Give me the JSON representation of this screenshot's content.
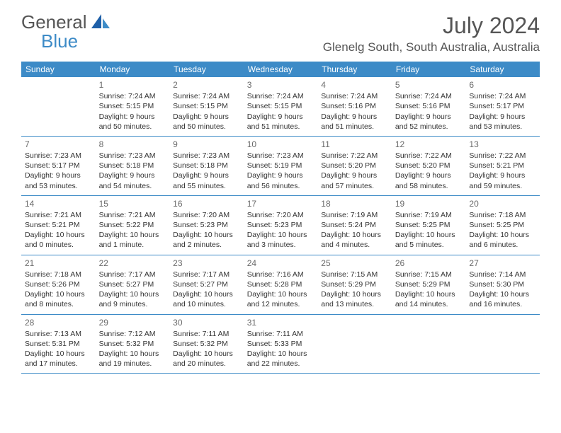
{
  "brand": {
    "word1": "General",
    "word2": "Blue"
  },
  "title": "July 2024",
  "location": "Glenelg South, South Australia, Australia",
  "colors": {
    "accent": "#3d8bc7",
    "text": "#333333",
    "muted": "#6a6a6a",
    "bg": "#ffffff"
  },
  "weekdays": [
    "Sunday",
    "Monday",
    "Tuesday",
    "Wednesday",
    "Thursday",
    "Friday",
    "Saturday"
  ],
  "weeks": [
    [
      {
        "n": "",
        "sunrise": "",
        "sunset": "",
        "day1": "",
        "day2": ""
      },
      {
        "n": "1",
        "sunrise": "Sunrise: 7:24 AM",
        "sunset": "Sunset: 5:15 PM",
        "day1": "Daylight: 9 hours",
        "day2": "and 50 minutes."
      },
      {
        "n": "2",
        "sunrise": "Sunrise: 7:24 AM",
        "sunset": "Sunset: 5:15 PM",
        "day1": "Daylight: 9 hours",
        "day2": "and 50 minutes."
      },
      {
        "n": "3",
        "sunrise": "Sunrise: 7:24 AM",
        "sunset": "Sunset: 5:15 PM",
        "day1": "Daylight: 9 hours",
        "day2": "and 51 minutes."
      },
      {
        "n": "4",
        "sunrise": "Sunrise: 7:24 AM",
        "sunset": "Sunset: 5:16 PM",
        "day1": "Daylight: 9 hours",
        "day2": "and 51 minutes."
      },
      {
        "n": "5",
        "sunrise": "Sunrise: 7:24 AM",
        "sunset": "Sunset: 5:16 PM",
        "day1": "Daylight: 9 hours",
        "day2": "and 52 minutes."
      },
      {
        "n": "6",
        "sunrise": "Sunrise: 7:24 AM",
        "sunset": "Sunset: 5:17 PM",
        "day1": "Daylight: 9 hours",
        "day2": "and 53 minutes."
      }
    ],
    [
      {
        "n": "7",
        "sunrise": "Sunrise: 7:23 AM",
        "sunset": "Sunset: 5:17 PM",
        "day1": "Daylight: 9 hours",
        "day2": "and 53 minutes."
      },
      {
        "n": "8",
        "sunrise": "Sunrise: 7:23 AM",
        "sunset": "Sunset: 5:18 PM",
        "day1": "Daylight: 9 hours",
        "day2": "and 54 minutes."
      },
      {
        "n": "9",
        "sunrise": "Sunrise: 7:23 AM",
        "sunset": "Sunset: 5:18 PM",
        "day1": "Daylight: 9 hours",
        "day2": "and 55 minutes."
      },
      {
        "n": "10",
        "sunrise": "Sunrise: 7:23 AM",
        "sunset": "Sunset: 5:19 PM",
        "day1": "Daylight: 9 hours",
        "day2": "and 56 minutes."
      },
      {
        "n": "11",
        "sunrise": "Sunrise: 7:22 AM",
        "sunset": "Sunset: 5:20 PM",
        "day1": "Daylight: 9 hours",
        "day2": "and 57 minutes."
      },
      {
        "n": "12",
        "sunrise": "Sunrise: 7:22 AM",
        "sunset": "Sunset: 5:20 PM",
        "day1": "Daylight: 9 hours",
        "day2": "and 58 minutes."
      },
      {
        "n": "13",
        "sunrise": "Sunrise: 7:22 AM",
        "sunset": "Sunset: 5:21 PM",
        "day1": "Daylight: 9 hours",
        "day2": "and 59 minutes."
      }
    ],
    [
      {
        "n": "14",
        "sunrise": "Sunrise: 7:21 AM",
        "sunset": "Sunset: 5:21 PM",
        "day1": "Daylight: 10 hours",
        "day2": "and 0 minutes."
      },
      {
        "n": "15",
        "sunrise": "Sunrise: 7:21 AM",
        "sunset": "Sunset: 5:22 PM",
        "day1": "Daylight: 10 hours",
        "day2": "and 1 minute."
      },
      {
        "n": "16",
        "sunrise": "Sunrise: 7:20 AM",
        "sunset": "Sunset: 5:23 PM",
        "day1": "Daylight: 10 hours",
        "day2": "and 2 minutes."
      },
      {
        "n": "17",
        "sunrise": "Sunrise: 7:20 AM",
        "sunset": "Sunset: 5:23 PM",
        "day1": "Daylight: 10 hours",
        "day2": "and 3 minutes."
      },
      {
        "n": "18",
        "sunrise": "Sunrise: 7:19 AM",
        "sunset": "Sunset: 5:24 PM",
        "day1": "Daylight: 10 hours",
        "day2": "and 4 minutes."
      },
      {
        "n": "19",
        "sunrise": "Sunrise: 7:19 AM",
        "sunset": "Sunset: 5:25 PM",
        "day1": "Daylight: 10 hours",
        "day2": "and 5 minutes."
      },
      {
        "n": "20",
        "sunrise": "Sunrise: 7:18 AM",
        "sunset": "Sunset: 5:25 PM",
        "day1": "Daylight: 10 hours",
        "day2": "and 6 minutes."
      }
    ],
    [
      {
        "n": "21",
        "sunrise": "Sunrise: 7:18 AM",
        "sunset": "Sunset: 5:26 PM",
        "day1": "Daylight: 10 hours",
        "day2": "and 8 minutes."
      },
      {
        "n": "22",
        "sunrise": "Sunrise: 7:17 AM",
        "sunset": "Sunset: 5:27 PM",
        "day1": "Daylight: 10 hours",
        "day2": "and 9 minutes."
      },
      {
        "n": "23",
        "sunrise": "Sunrise: 7:17 AM",
        "sunset": "Sunset: 5:27 PM",
        "day1": "Daylight: 10 hours",
        "day2": "and 10 minutes."
      },
      {
        "n": "24",
        "sunrise": "Sunrise: 7:16 AM",
        "sunset": "Sunset: 5:28 PM",
        "day1": "Daylight: 10 hours",
        "day2": "and 12 minutes."
      },
      {
        "n": "25",
        "sunrise": "Sunrise: 7:15 AM",
        "sunset": "Sunset: 5:29 PM",
        "day1": "Daylight: 10 hours",
        "day2": "and 13 minutes."
      },
      {
        "n": "26",
        "sunrise": "Sunrise: 7:15 AM",
        "sunset": "Sunset: 5:29 PM",
        "day1": "Daylight: 10 hours",
        "day2": "and 14 minutes."
      },
      {
        "n": "27",
        "sunrise": "Sunrise: 7:14 AM",
        "sunset": "Sunset: 5:30 PM",
        "day1": "Daylight: 10 hours",
        "day2": "and 16 minutes."
      }
    ],
    [
      {
        "n": "28",
        "sunrise": "Sunrise: 7:13 AM",
        "sunset": "Sunset: 5:31 PM",
        "day1": "Daylight: 10 hours",
        "day2": "and 17 minutes."
      },
      {
        "n": "29",
        "sunrise": "Sunrise: 7:12 AM",
        "sunset": "Sunset: 5:32 PM",
        "day1": "Daylight: 10 hours",
        "day2": "and 19 minutes."
      },
      {
        "n": "30",
        "sunrise": "Sunrise: 7:11 AM",
        "sunset": "Sunset: 5:32 PM",
        "day1": "Daylight: 10 hours",
        "day2": "and 20 minutes."
      },
      {
        "n": "31",
        "sunrise": "Sunrise: 7:11 AM",
        "sunset": "Sunset: 5:33 PM",
        "day1": "Daylight: 10 hours",
        "day2": "and 22 minutes."
      },
      {
        "n": "",
        "sunrise": "",
        "sunset": "",
        "day1": "",
        "day2": ""
      },
      {
        "n": "",
        "sunrise": "",
        "sunset": "",
        "day1": "",
        "day2": ""
      },
      {
        "n": "",
        "sunrise": "",
        "sunset": "",
        "day1": "",
        "day2": ""
      }
    ]
  ]
}
